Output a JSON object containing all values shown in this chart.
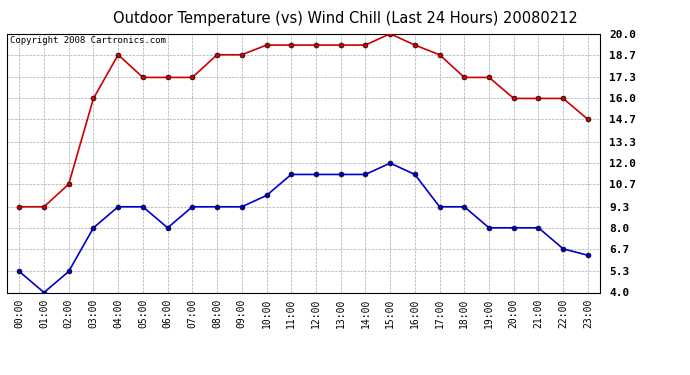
{
  "title": "Outdoor Temperature (vs) Wind Chill (Last 24 Hours) 20080212",
  "copyright": "Copyright 2008 Cartronics.com",
  "hours": [
    "00:00",
    "01:00",
    "02:00",
    "03:00",
    "04:00",
    "05:00",
    "06:00",
    "07:00",
    "08:00",
    "09:00",
    "10:00",
    "11:00",
    "12:00",
    "13:00",
    "14:00",
    "15:00",
    "16:00",
    "17:00",
    "18:00",
    "19:00",
    "20:00",
    "21:00",
    "22:00",
    "23:00"
  ],
  "temp": [
    9.3,
    9.3,
    10.7,
    16.0,
    18.7,
    17.3,
    17.3,
    17.3,
    18.7,
    18.7,
    19.3,
    19.3,
    19.3,
    19.3,
    19.3,
    20.0,
    19.3,
    18.7,
    17.3,
    17.3,
    16.0,
    16.0,
    16.0,
    14.7
  ],
  "windchill": [
    5.3,
    4.0,
    5.3,
    8.0,
    9.3,
    9.3,
    8.0,
    9.3,
    9.3,
    9.3,
    10.0,
    11.3,
    11.3,
    11.3,
    11.3,
    12.0,
    11.3,
    9.3,
    9.3,
    8.0,
    8.0,
    8.0,
    6.7,
    6.3
  ],
  "temp_color": "#cc0000",
  "windchill_color": "#0000cc",
  "bg_color": "#ffffff",
  "plot_bg_color": "#ffffff",
  "grid_color": "#aaaaaa",
  "ylim_min": 4.0,
  "ylim_max": 20.0,
  "yticks": [
    4.0,
    5.3,
    6.7,
    8.0,
    9.3,
    10.7,
    12.0,
    13.3,
    14.7,
    16.0,
    17.3,
    18.7,
    20.0
  ]
}
